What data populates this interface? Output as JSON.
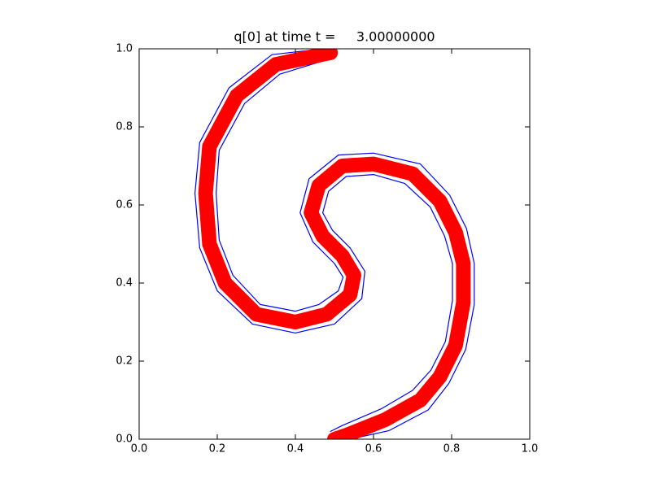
{
  "chart_data": {
    "type": "line",
    "title": "q[0] at time t =     3.00000000",
    "xlim": [
      0,
      1
    ],
    "ylim": [
      0,
      1
    ],
    "xticks": [
      {
        "value": 0,
        "label": "0.0"
      },
      0.2,
      0.4,
      0.6,
      0.8,
      {
        "value": 1,
        "label": "1.0"
      }
    ],
    "yticks": [
      {
        "value": 0,
        "label": "0.0"
      },
      0.2,
      0.4,
      0.6,
      0.8,
      {
        "value": 1,
        "label": "1.0"
      }
    ],
    "series": [
      {
        "color": "#0000ff",
        "x": [
          0.47,
          0.34,
          0.23,
          0.155,
          0.143,
          0.155,
          0.2,
          0.29,
          0.4,
          0.5,
          0.57,
          0.578,
          0.54,
          0.495,
          0.47,
          0.485,
          0.53,
          0.6,
          0.68,
          0.745,
          0.782,
          0.802,
          0.802,
          0.784,
          0.747,
          0.7,
          0.62,
          0.52,
          0.49
        ],
        "values": [
          1.0,
          0.985,
          0.9,
          0.76,
          0.63,
          0.49,
          0.38,
          0.295,
          0.272,
          0.295,
          0.36,
          0.43,
          0.49,
          0.535,
          0.58,
          0.635,
          0.673,
          0.678,
          0.655,
          0.595,
          0.52,
          0.45,
          0.355,
          0.25,
          0.177,
          0.125,
          0.078,
          0.035,
          0.02
        ]
      },
      {
        "color": "#0000ff",
        "x": [
          0.49,
          0.36,
          0.27,
          0.205,
          0.197,
          0.205,
          0.24,
          0.31,
          0.4,
          0.46,
          0.51,
          0.522,
          0.5,
          0.445,
          0.412,
          0.435,
          0.51,
          0.6,
          0.72,
          0.795,
          0.838,
          0.858,
          0.858,
          0.836,
          0.793,
          0.74,
          0.64,
          0.54,
          0.52
        ],
        "values": [
          0.975,
          0.935,
          0.86,
          0.74,
          0.63,
          0.51,
          0.42,
          0.345,
          0.328,
          0.345,
          0.38,
          0.415,
          0.45,
          0.505,
          0.58,
          0.667,
          0.728,
          0.733,
          0.705,
          0.625,
          0.54,
          0.45,
          0.345,
          0.23,
          0.143,
          0.075,
          0.022,
          0.0,
          0.0
        ]
      },
      {
        "color": "#ff0000",
        "x": [
          0.49,
          0.35,
          0.25,
          0.18,
          0.17,
          0.18,
          0.22,
          0.3,
          0.4,
          0.48,
          0.54,
          0.55,
          0.52,
          0.47,
          0.44,
          0.46,
          0.52,
          0.6,
          0.7,
          0.77,
          0.81,
          0.83,
          0.83,
          0.81,
          0.77,
          0.72,
          0.63,
          0.53,
          0.5
        ],
        "values": [
          0.99,
          0.96,
          0.88,
          0.75,
          0.63,
          0.5,
          0.4,
          0.32,
          0.3,
          0.32,
          0.37,
          0.42,
          0.47,
          0.52,
          0.58,
          0.65,
          0.7,
          0.705,
          0.68,
          0.61,
          0.53,
          0.45,
          0.35,
          0.24,
          0.16,
          0.1,
          0.05,
          0.01,
          0.0
        ]
      }
    ]
  }
}
